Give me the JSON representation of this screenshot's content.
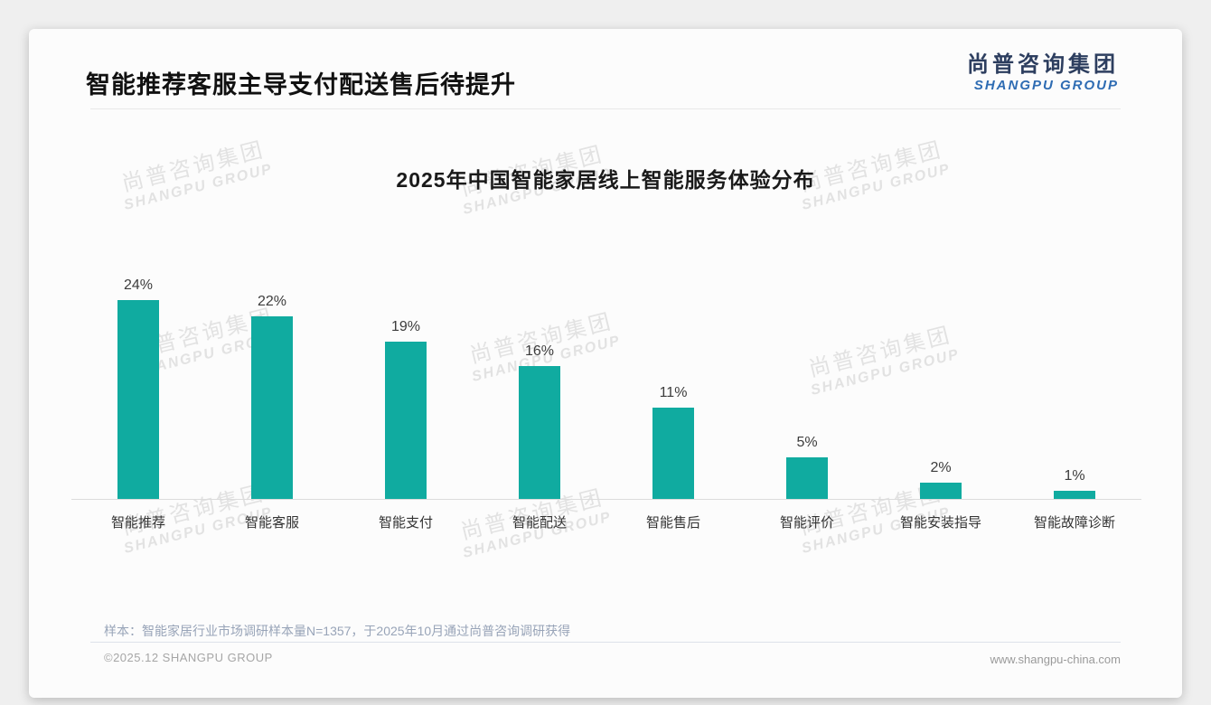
{
  "header": {
    "title": "智能推荐客服主导支付配送售后待提升"
  },
  "logo": {
    "cn": "尚普咨询集团",
    "en": "SHANGPU GROUP"
  },
  "watermark": {
    "line1": "尚普咨询集团",
    "line2": "SHANGPU GROUP"
  },
  "chart_data": {
    "type": "bar",
    "title": "2025年中国智能家居线上智能服务体验分布",
    "categories": [
      "智能推荐",
      "智能客服",
      "智能支付",
      "智能配送",
      "智能售后",
      "智能评价",
      "智能安装指导",
      "智能故障诊断"
    ],
    "values": [
      24,
      22,
      19,
      16,
      11,
      5,
      2,
      1
    ],
    "value_labels": [
      "24%",
      "22%",
      "19%",
      "16%",
      "11%",
      "5%",
      "2%",
      "1%"
    ],
    "unit": "%",
    "bar_color": "#10aba0",
    "ylim": [
      0,
      25
    ],
    "grid": false,
    "legend": false,
    "xlabel": "",
    "ylabel": ""
  },
  "footer": {
    "note": "样本：智能家居行业市场调研样本量N=1357，于2025年10月通过尚普咨询调研获得",
    "copyright": "©2025.12 SHANGPU GROUP",
    "website": "www.shangpu-china.com"
  }
}
